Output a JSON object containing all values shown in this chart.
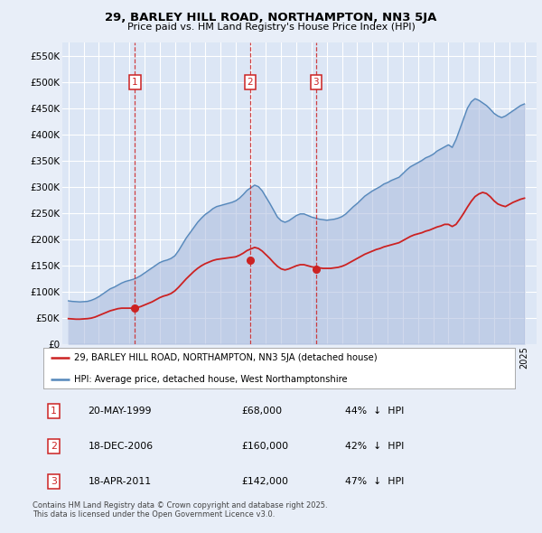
{
  "title": "29, BARLEY HILL ROAD, NORTHAMPTON, NN3 5JA",
  "subtitle": "Price paid vs. HM Land Registry's House Price Index (HPI)",
  "background_color": "#e8eef8",
  "plot_bg_color": "#dce6f5",
  "ylim": [
    0,
    575000
  ],
  "yticks": [
    0,
    50000,
    100000,
    150000,
    200000,
    250000,
    300000,
    350000,
    400000,
    450000,
    500000,
    550000
  ],
  "ytick_labels": [
    "£0",
    "£50K",
    "£100K",
    "£150K",
    "£200K",
    "£250K",
    "£300K",
    "£350K",
    "£400K",
    "£450K",
    "£500K",
    "£550K"
  ],
  "xmin": 1994.6,
  "xmax": 2025.8,
  "grid_color": "#ffffff",
  "hpi_color": "#5588bb",
  "hpi_fill_color": "#aabbdd",
  "price_color": "#cc2222",
  "transactions": [
    {
      "num": 1,
      "date": "20-MAY-1999",
      "year": 1999.38,
      "price": 68000,
      "pct": "44%",
      "dir": "↓"
    },
    {
      "num": 2,
      "date": "18-DEC-2006",
      "year": 2006.96,
      "price": 160000,
      "pct": "42%",
      "dir": "↓"
    },
    {
      "num": 3,
      "date": "18-APR-2011",
      "year": 2011.29,
      "price": 142000,
      "pct": "47%",
      "dir": "↓"
    }
  ],
  "legend_line1": "29, BARLEY HILL ROAD, NORTHAMPTON, NN3 5JA (detached house)",
  "legend_line2": "HPI: Average price, detached house, West Northamptonshire",
  "footnote": "Contains HM Land Registry data © Crown copyright and database right 2025.\nThis data is licensed under the Open Government Licence v3.0.",
  "hpi_data_x": [
    1995.0,
    1995.25,
    1995.5,
    1995.75,
    1996.0,
    1996.25,
    1996.5,
    1996.75,
    1997.0,
    1997.25,
    1997.5,
    1997.75,
    1998.0,
    1998.25,
    1998.5,
    1998.75,
    1999.0,
    1999.25,
    1999.5,
    1999.75,
    2000.0,
    2000.25,
    2000.5,
    2000.75,
    2001.0,
    2001.25,
    2001.5,
    2001.75,
    2002.0,
    2002.25,
    2002.5,
    2002.75,
    2003.0,
    2003.25,
    2003.5,
    2003.75,
    2004.0,
    2004.25,
    2004.5,
    2004.75,
    2005.0,
    2005.25,
    2005.5,
    2005.75,
    2006.0,
    2006.25,
    2006.5,
    2006.75,
    2007.0,
    2007.25,
    2007.5,
    2007.75,
    2008.0,
    2008.25,
    2008.5,
    2008.75,
    2009.0,
    2009.25,
    2009.5,
    2009.75,
    2010.0,
    2010.25,
    2010.5,
    2010.75,
    2011.0,
    2011.25,
    2011.5,
    2011.75,
    2012.0,
    2012.25,
    2012.5,
    2012.75,
    2013.0,
    2013.25,
    2013.5,
    2013.75,
    2014.0,
    2014.25,
    2014.5,
    2014.75,
    2015.0,
    2015.25,
    2015.5,
    2015.75,
    2016.0,
    2016.25,
    2016.5,
    2016.75,
    2017.0,
    2017.25,
    2017.5,
    2017.75,
    2018.0,
    2018.25,
    2018.5,
    2018.75,
    2019.0,
    2019.25,
    2019.5,
    2019.75,
    2020.0,
    2020.25,
    2020.5,
    2020.75,
    2021.0,
    2021.25,
    2021.5,
    2021.75,
    2022.0,
    2022.25,
    2022.5,
    2022.75,
    2023.0,
    2023.25,
    2023.5,
    2023.75,
    2024.0,
    2024.25,
    2024.5,
    2024.75,
    2025.0
  ],
  "hpi_data_y": [
    82000,
    81000,
    80500,
    80000,
    80500,
    81000,
    83000,
    86000,
    90000,
    95000,
    100000,
    105000,
    108000,
    112000,
    116000,
    119000,
    121000,
    123000,
    126000,
    130000,
    135000,
    140000,
    145000,
    150000,
    155000,
    158000,
    160000,
    163000,
    168000,
    178000,
    190000,
    202000,
    212000,
    222000,
    232000,
    240000,
    247000,
    252000,
    258000,
    262000,
    264000,
    266000,
    268000,
    270000,
    273000,
    278000,
    285000,
    293000,
    298000,
    303000,
    300000,
    292000,
    280000,
    268000,
    255000,
    242000,
    235000,
    232000,
    235000,
    240000,
    245000,
    248000,
    248000,
    245000,
    242000,
    240000,
    238000,
    237000,
    236000,
    237000,
    238000,
    240000,
    243000,
    248000,
    255000,
    262000,
    268000,
    275000,
    282000,
    287000,
    292000,
    296000,
    300000,
    305000,
    308000,
    312000,
    315000,
    318000,
    325000,
    332000,
    338000,
    342000,
    346000,
    350000,
    355000,
    358000,
    362000,
    368000,
    372000,
    376000,
    380000,
    375000,
    390000,
    410000,
    430000,
    450000,
    462000,
    468000,
    465000,
    460000,
    455000,
    448000,
    440000,
    435000,
    432000,
    435000,
    440000,
    445000,
    450000,
    455000,
    458000
  ],
  "price_data_x": [
    1995.0,
    1995.25,
    1995.5,
    1995.75,
    1996.0,
    1996.25,
    1996.5,
    1996.75,
    1997.0,
    1997.25,
    1997.5,
    1997.75,
    1998.0,
    1998.25,
    1998.5,
    1998.75,
    1999.0,
    1999.25,
    1999.5,
    1999.75,
    2000.0,
    2000.25,
    2000.5,
    2000.75,
    2001.0,
    2001.25,
    2001.5,
    2001.75,
    2002.0,
    2002.25,
    2002.5,
    2002.75,
    2003.0,
    2003.25,
    2003.5,
    2003.75,
    2004.0,
    2004.25,
    2004.5,
    2004.75,
    2005.0,
    2005.25,
    2005.5,
    2005.75,
    2006.0,
    2006.25,
    2006.5,
    2006.75,
    2007.0,
    2007.25,
    2007.5,
    2007.75,
    2008.0,
    2008.25,
    2008.5,
    2008.75,
    2009.0,
    2009.25,
    2009.5,
    2009.75,
    2010.0,
    2010.25,
    2010.5,
    2010.75,
    2011.0,
    2011.25,
    2011.5,
    2011.75,
    2012.0,
    2012.25,
    2012.5,
    2012.75,
    2013.0,
    2013.25,
    2013.5,
    2013.75,
    2014.0,
    2014.25,
    2014.5,
    2014.75,
    2015.0,
    2015.25,
    2015.5,
    2015.75,
    2016.0,
    2016.25,
    2016.5,
    2016.75,
    2017.0,
    2017.25,
    2017.5,
    2017.75,
    2018.0,
    2018.25,
    2018.5,
    2018.75,
    2019.0,
    2019.25,
    2019.5,
    2019.75,
    2020.0,
    2020.25,
    2020.5,
    2020.75,
    2021.0,
    2021.25,
    2021.5,
    2021.75,
    2022.0,
    2022.25,
    2022.5,
    2022.75,
    2023.0,
    2023.25,
    2023.5,
    2023.75,
    2024.0,
    2024.25,
    2024.5,
    2024.75,
    2025.0
  ],
  "price_data_y": [
    48000,
    47500,
    47000,
    47000,
    47500,
    48000,
    49000,
    51000,
    54000,
    57000,
    60000,
    63000,
    65000,
    67000,
    68000,
    68000,
    68000,
    68000,
    69000,
    71000,
    74000,
    77000,
    80000,
    84000,
    88000,
    91000,
    93000,
    96000,
    101000,
    108000,
    116000,
    124000,
    131000,
    138000,
    144000,
    149000,
    153000,
    156000,
    159000,
    161000,
    162000,
    163000,
    164000,
    165000,
    166000,
    169000,
    173000,
    178000,
    181000,
    184000,
    182000,
    177000,
    170000,
    163000,
    155000,
    148000,
    143000,
    141000,
    143000,
    146000,
    149000,
    151000,
    151000,
    149000,
    147000,
    146000,
    145000,
    144000,
    144000,
    144000,
    145000,
    146000,
    148000,
    151000,
    155000,
    159000,
    163000,
    167000,
    171000,
    174000,
    177000,
    180000,
    182000,
    185000,
    187000,
    189000,
    191000,
    193000,
    197000,
    201000,
    205000,
    208000,
    210000,
    212000,
    215000,
    217000,
    220000,
    223000,
    225000,
    228000,
    228000,
    224000,
    228000,
    238000,
    249000,
    261000,
    272000,
    281000,
    286000,
    289000,
    287000,
    281000,
    273000,
    267000,
    264000,
    262000,
    266000,
    270000,
    273000,
    276000,
    278000
  ]
}
